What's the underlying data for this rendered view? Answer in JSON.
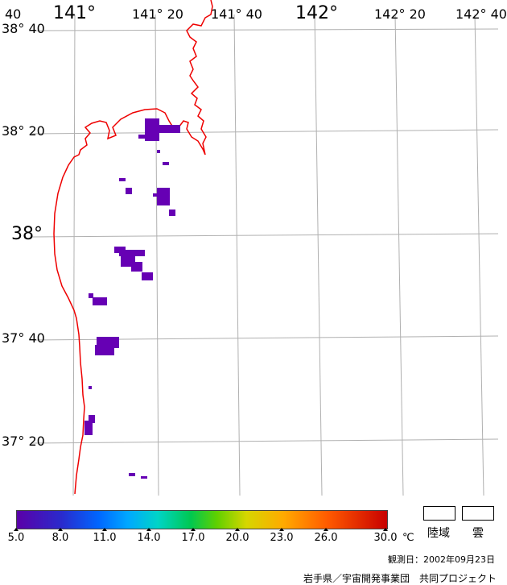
{
  "map": {
    "lon_labels": [
      "141°",
      "141° 20",
      "141° 40",
      "142°",
      "142° 20",
      "142° 40"
    ],
    "lat_labels": [
      "38° 40",
      "38° 20",
      "38°",
      "37° 40",
      "37° 20"
    ],
    "colors": {
      "coastline": "#ee0000",
      "grid": "#b0b0b0",
      "sst_patch": "#6600b4"
    }
  },
  "legend": {
    "ticks": [
      "5.0",
      "8.0",
      "11.0",
      "14.0",
      "17.0",
      "20.0",
      "23.0",
      "26.0",
      "30.0"
    ],
    "unit": "℃",
    "land_label": "陸域",
    "cloud_label": "雲",
    "observation_date": "観測日：2002年09月23日",
    "credit": "岩手県／宇宙開発事業団　共同プロジェクト"
  }
}
